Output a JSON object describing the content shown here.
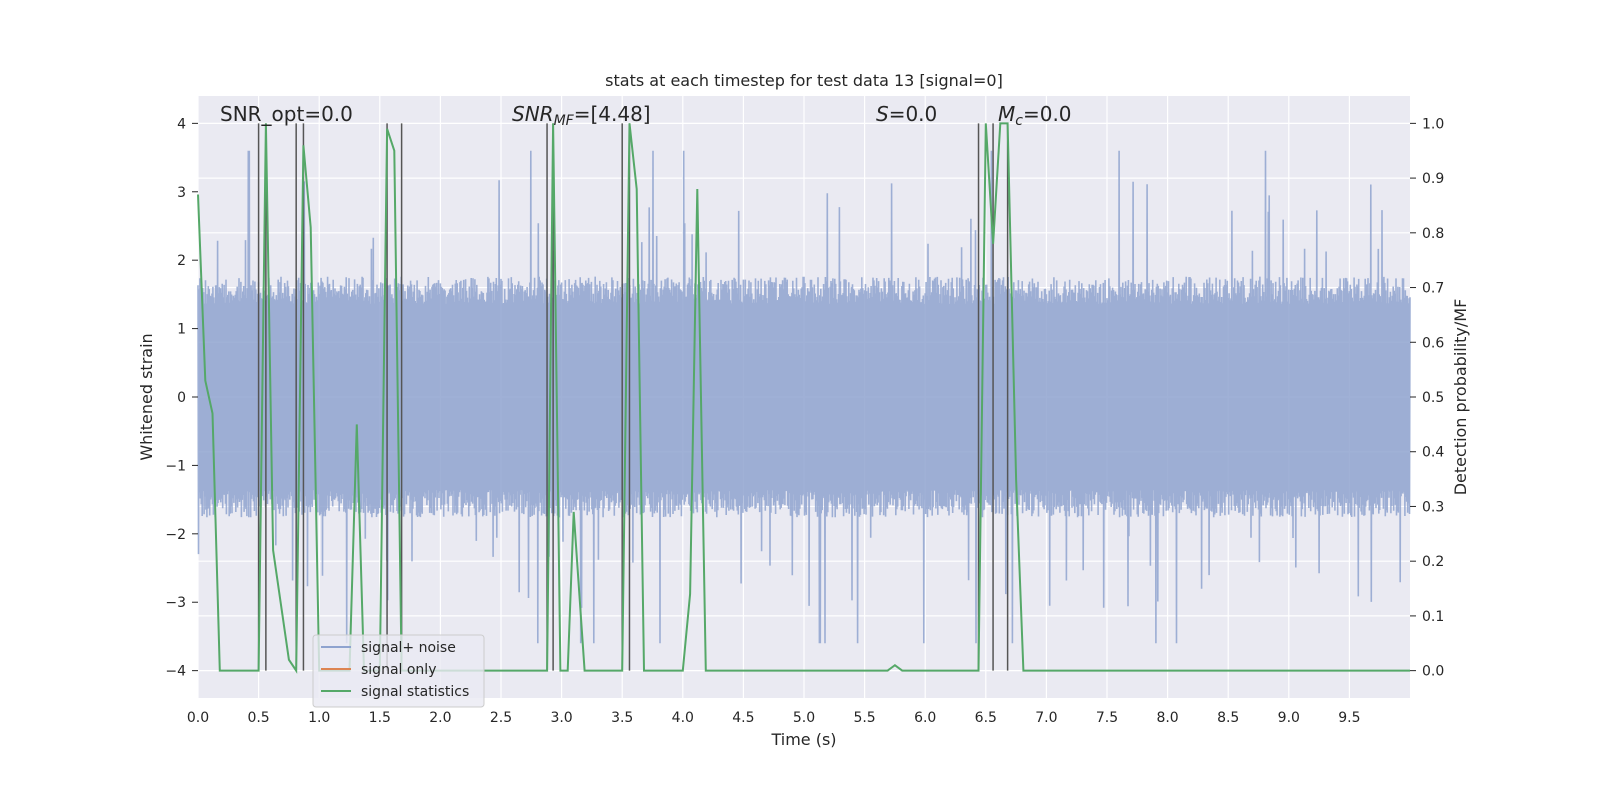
{
  "chart_data": {
    "type": "line",
    "title": "stats at each timestep for test data 13 [signal=0]",
    "xlabel": "Time (s)",
    "ylabel_left": "Whitened strain",
    "ylabel_right": "Detection probability/MF",
    "xlim": [
      0.0,
      10.0
    ],
    "ylim_left": [
      -4.4,
      4.4
    ],
    "ylim_right": [
      -0.05,
      1.05
    ],
    "x_ticks": [
      "0.0",
      "0.5",
      "1.0",
      "1.5",
      "2.0",
      "2.5",
      "3.0",
      "3.5",
      "4.0",
      "4.5",
      "5.0",
      "5.5",
      "6.0",
      "6.5",
      "7.0",
      "7.5",
      "8.0",
      "8.5",
      "9.0",
      "9.5"
    ],
    "y_left_ticks": [
      "4",
      "3",
      "2",
      "1",
      "0",
      "−1",
      "−2",
      "−3",
      "−4"
    ],
    "y_right_ticks": [
      "1.0",
      "0.9",
      "0.8",
      "0.7",
      "0.6",
      "0.5",
      "0.4",
      "0.3",
      "0.2",
      "0.1",
      "0.0"
    ],
    "grid": true,
    "legend_position": "lower-left",
    "annotations": [
      {
        "text": "SNR_opt=0.0"
      },
      {
        "text": "SNR",
        "sub": "MF",
        "rest": "=[4.48]"
      },
      {
        "text": "S",
        "rest": "=0.0"
      },
      {
        "text": "M",
        "sub": "c",
        "rest": "=0.0"
      }
    ],
    "vlines_x": [
      0.5,
      0.56,
      0.81,
      0.87,
      1.56,
      1.68,
      2.88,
      2.93,
      3.5,
      3.56,
      6.44,
      6.56,
      6.68
    ],
    "series": [
      {
        "name": "signal+ noise",
        "color": "#8fa3cf",
        "axis": "left",
        "description_values": {
          "envelope_typical": 1.6,
          "spike_max": 4.0,
          "spike_min": -4.0
        }
      },
      {
        "name": "signal only",
        "color": "#dd8452",
        "axis": "left",
        "values": []
      },
      {
        "name": "signal statistics",
        "color": "#55a868",
        "axis": "right",
        "x": [
          0.0,
          0.06,
          0.12,
          0.18,
          0.25,
          0.5,
          0.56,
          0.62,
          0.75,
          0.81,
          0.87,
          0.93,
          1.0,
          1.25,
          1.31,
          1.37,
          1.44,
          1.5,
          1.56,
          1.62,
          1.68,
          1.75,
          2.0,
          2.5,
          2.88,
          2.93,
          2.99,
          3.05,
          3.1,
          3.19,
          3.25,
          3.31,
          3.5,
          3.56,
          3.62,
          3.68,
          3.75,
          4.0,
          4.06,
          4.12,
          4.19,
          4.25,
          5.5,
          5.69,
          5.75,
          5.81,
          6.0,
          6.44,
          6.5,
          6.56,
          6.62,
          6.68,
          6.75,
          6.81,
          6.87,
          7.0,
          8.0,
          9.0,
          10.0
        ],
        "y": [
          0.87,
          0.53,
          0.47,
          0.0,
          0.0,
          0.0,
          1.0,
          0.22,
          0.02,
          0.0,
          0.96,
          0.81,
          0.0,
          0.0,
          0.45,
          0.0,
          0.0,
          0.0,
          0.99,
          0.95,
          0.0,
          0.0,
          0.0,
          0.0,
          0.0,
          1.0,
          0.0,
          0.0,
          0.29,
          0.0,
          0.0,
          0.0,
          0.0,
          1.0,
          0.88,
          0.0,
          0.0,
          0.0,
          0.14,
          0.88,
          0.0,
          0.0,
          0.0,
          0.0,
          0.01,
          0.0,
          0.0,
          0.0,
          1.0,
          0.78,
          1.0,
          1.0,
          0.35,
          0.0,
          0.0,
          0.0,
          0.0,
          0.0,
          0.0
        ]
      }
    ]
  }
}
